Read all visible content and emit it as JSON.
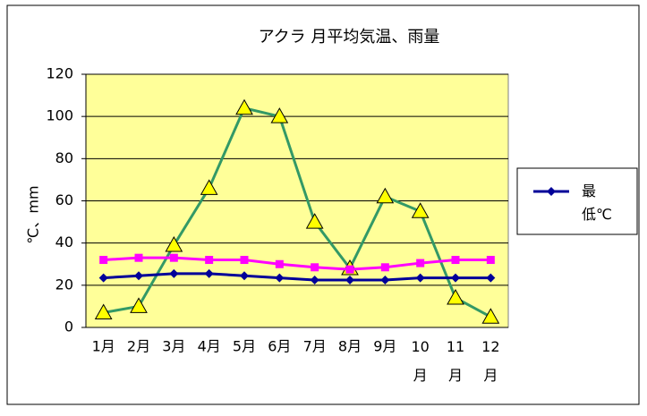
{
  "chart_data": {
    "type": "line",
    "title": "アクラ 月平均気温、雨量",
    "y_label": "℃、mm",
    "categories": [
      "1月",
      "2月",
      "3月",
      "4月",
      "5月",
      "6月",
      "7月",
      "8月",
      "9月",
      "10月",
      "11月",
      "12月"
    ],
    "series": [
      {
        "name": "最低℃",
        "color": "#000099",
        "marker": "diamond",
        "values": [
          23.5,
          24.5,
          25.5,
          25.5,
          24.5,
          23.5,
          22.5,
          22.5,
          22.5,
          23.5,
          23.5,
          23.5
        ]
      },
      {
        "color": "#ff00ff",
        "marker": "square",
        "values": [
          32,
          33,
          33,
          32,
          32,
          30,
          28.5,
          27.5,
          28.5,
          30.5,
          32,
          32
        ]
      },
      {
        "color": "#339966",
        "marker": "triangle",
        "values": [
          7,
          10,
          39,
          66,
          104,
          100,
          50,
          28,
          62,
          55,
          14,
          5
        ]
      }
    ],
    "ylim": [
      0,
      120
    ],
    "yticks": [
      0,
      20,
      40,
      60,
      80,
      100,
      120
    ],
    "grid": true,
    "legend": "right"
  }
}
